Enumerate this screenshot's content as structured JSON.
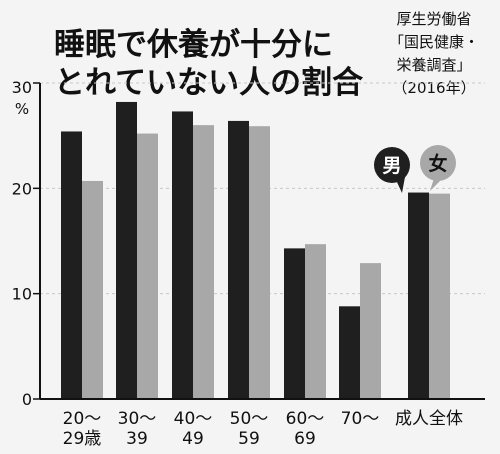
{
  "colors": {
    "male": "#1f1f1f",
    "female": "#a8a8a8",
    "axis": "#111111",
    "grid": "#c8c8c8",
    "background": "#f4f4f4"
  },
  "texts": {
    "title_lines": [
      "睡眠で休養が十分に",
      "とれていない人の割合"
    ],
    "source_lines": [
      "厚生労働省",
      "「国民健康・",
      "栄養調査」",
      "（2016年）"
    ]
  },
  "chart_data": {
    "type": "bar",
    "title": "睡眠で休養が十分にとれていない人の割合",
    "ylim": [
      0,
      30
    ],
    "yticks": [
      0,
      10,
      20,
      30
    ],
    "y_unit": "%",
    "grid": true,
    "categories": [
      [
        "20〜",
        "29歳"
      ],
      [
        "30〜",
        "39"
      ],
      [
        "40〜",
        "49"
      ],
      [
        "50〜",
        "59"
      ],
      [
        "60〜",
        "69"
      ],
      [
        "70〜",
        ""
      ],
      [
        "成人全体",
        ""
      ]
    ],
    "series": [
      {
        "name": "男",
        "values": [
          25.4,
          28.2,
          27.3,
          26.4,
          14.3,
          8.8,
          19.6
        ]
      },
      {
        "name": "女",
        "values": [
          20.7,
          25.2,
          26.0,
          25.9,
          14.7,
          12.9,
          19.5
        ]
      }
    ]
  }
}
